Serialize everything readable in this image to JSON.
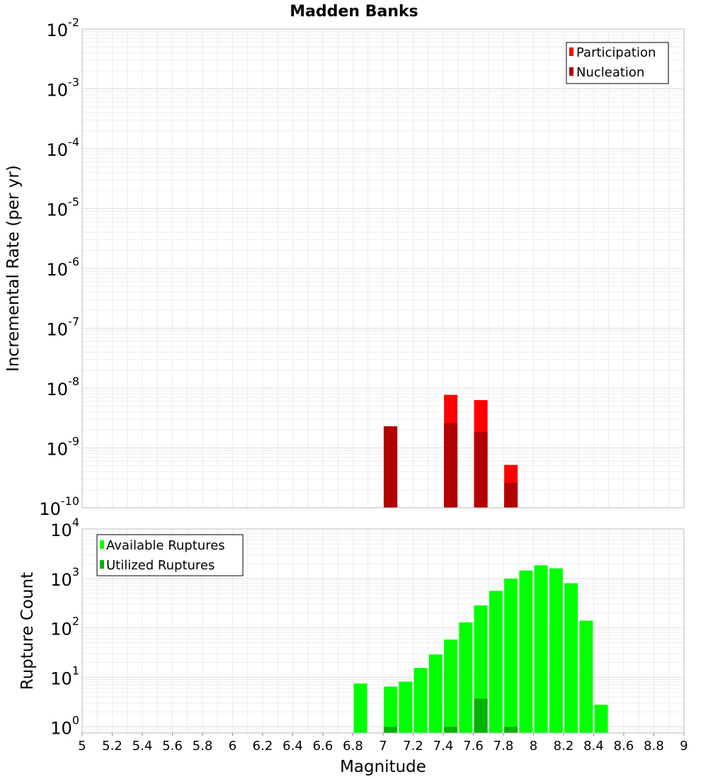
{
  "title": "Madden Banks",
  "chart_data": [
    {
      "type": "bar",
      "scale": "log",
      "ylabel": "Incremental Rate (per yr)",
      "ylim": [
        1e-10,
        0.01
      ],
      "xlim": [
        5,
        9
      ],
      "grid": true,
      "legend_position": "top-right",
      "y_ticks": [
        {
          "base": "10",
          "exp": "-10",
          "value": 1e-10
        },
        {
          "base": "10",
          "exp": "-9",
          "value": 1e-09
        },
        {
          "base": "10",
          "exp": "-8",
          "value": 1e-08
        },
        {
          "base": "10",
          "exp": "-7",
          "value": 1e-07
        },
        {
          "base": "10",
          "exp": "-6",
          "value": 1e-06
        },
        {
          "base": "10",
          "exp": "-5",
          "value": 1e-05
        },
        {
          "base": "10",
          "exp": "-4",
          "value": 0.0001
        },
        {
          "base": "10",
          "exp": "-3",
          "value": 0.001
        },
        {
          "base": "10",
          "exp": "-2",
          "value": 0.01
        }
      ],
      "series": [
        {
          "name": "Participation",
          "color": "#ff0000",
          "points": [
            {
              "x": 7.05,
              "y": 2.3e-09
            },
            {
              "x": 7.45,
              "y": 7.7e-09
            },
            {
              "x": 7.65,
              "y": 6.3e-09
            },
            {
              "x": 7.85,
              "y": 5.2e-10
            }
          ]
        },
        {
          "name": "Nucleation",
          "color": "#b30000",
          "points": [
            {
              "x": 7.05,
              "y": 2.3e-09
            },
            {
              "x": 7.45,
              "y": 2.6e-09
            },
            {
              "x": 7.65,
              "y": 1.85e-09
            },
            {
              "x": 7.85,
              "y": 2.6e-10
            }
          ]
        }
      ]
    },
    {
      "type": "bar",
      "scale": "log",
      "xlabel": "Magnitude",
      "ylabel": "Rupture Count",
      "ylim": [
        0.75,
        10000
      ],
      "xlim": [
        5,
        9
      ],
      "grid": true,
      "legend_position": "top-left",
      "x_ticks": [
        "5",
        "5.2",
        "5.4",
        "5.6",
        "5.8",
        "6",
        "6.2",
        "6.4",
        "6.6",
        "6.8",
        "7",
        "7.2",
        "7.4",
        "7.6",
        "7.8",
        "8",
        "8.2",
        "8.4",
        "8.6",
        "8.8",
        "9"
      ],
      "y_ticks": [
        {
          "base": "10",
          "exp": "0",
          "value": 1
        },
        {
          "base": "10",
          "exp": "1",
          "value": 10
        },
        {
          "base": "10",
          "exp": "2",
          "value": 100
        },
        {
          "base": "10",
          "exp": "3",
          "value": 1000
        },
        {
          "base": "10",
          "exp": "4",
          "value": 10000
        }
      ],
      "series": [
        {
          "name": "Available Ruptures",
          "color": "#00ff00",
          "points": [
            {
              "x": 6.85,
              "y": 7.5
            },
            {
              "x": 7.05,
              "y": 6.5
            },
            {
              "x": 7.15,
              "y": 8.2
            },
            {
              "x": 7.25,
              "y": 15.5
            },
            {
              "x": 7.35,
              "y": 29
            },
            {
              "x": 7.45,
              "y": 58
            },
            {
              "x": 7.55,
              "y": 130
            },
            {
              "x": 7.65,
              "y": 285
            },
            {
              "x": 7.75,
              "y": 560
            },
            {
              "x": 7.85,
              "y": 990
            },
            {
              "x": 7.95,
              "y": 1450
            },
            {
              "x": 8.05,
              "y": 1850
            },
            {
              "x": 8.15,
              "y": 1600
            },
            {
              "x": 8.25,
              "y": 800
            },
            {
              "x": 8.35,
              "y": 140
            },
            {
              "x": 8.45,
              "y": 2.8
            }
          ]
        },
        {
          "name": "Utilized Ruptures",
          "color": "#00b300",
          "points": [
            {
              "x": 7.05,
              "y": 1
            },
            {
              "x": 7.45,
              "y": 1
            },
            {
              "x": 7.65,
              "y": 3.7
            },
            {
              "x": 7.85,
              "y": 1
            }
          ]
        }
      ]
    }
  ]
}
